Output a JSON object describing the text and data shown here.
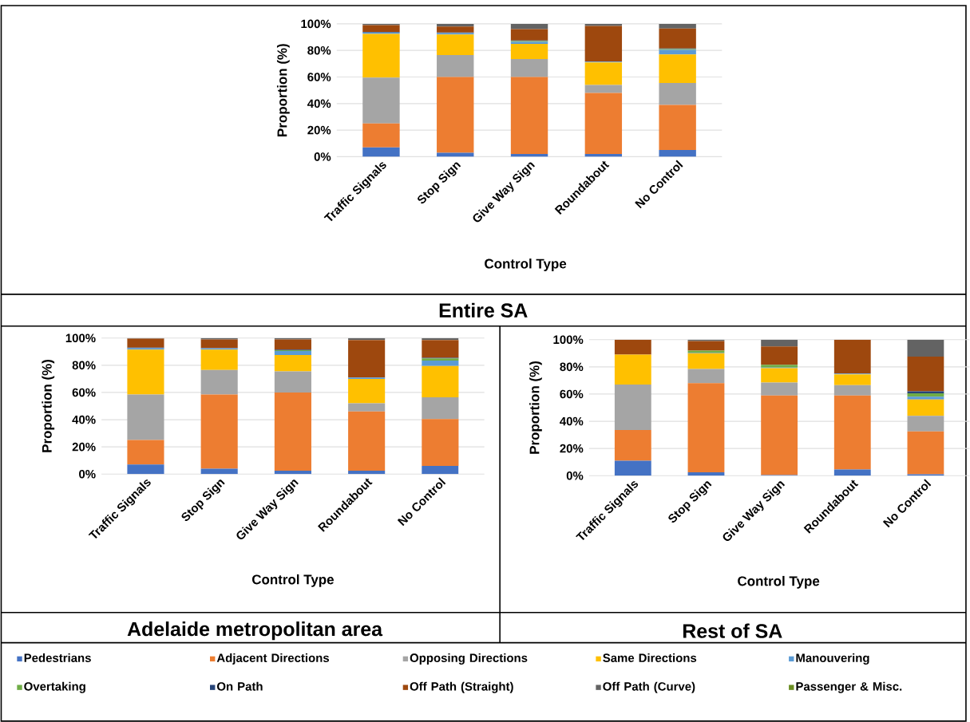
{
  "chart_data": [
    {
      "type": "bar",
      "stacked": true,
      "title": "Entire SA",
      "xlabel": "Control Type",
      "ylabel": "Proportion (%)",
      "grid": "y",
      "categories": [
        "Traffic Signals",
        "Stop Sign",
        "Give Way Sign",
        "Roundabout",
        "No Control"
      ],
      "ylim": [
        0,
        100
      ],
      "yticks": [
        {
          "value": 0,
          "label": "0%"
        },
        {
          "value": 20,
          "label": "20%"
        },
        {
          "value": 40,
          "label": "40%"
        },
        {
          "value": 60,
          "label": "60%"
        },
        {
          "value": 80,
          "label": "80%"
        },
        {
          "value": 100,
          "label": "100%"
        }
      ],
      "series": [
        {
          "color": "#4472c4",
          "values": [
            7,
            3,
            2,
            2,
            5
          ]
        },
        {
          "color": "#ed7d31",
          "values": [
            18,
            57,
            58,
            46,
            34
          ]
        },
        {
          "color": "#a5a5a5",
          "values": [
            34.5,
            16.5,
            13.5,
            6,
            16.5
          ]
        },
        {
          "color": "#ffc000",
          "values": [
            33,
            15.5,
            11.5,
            17,
            21.5
          ]
        },
        {
          "color": "#5b9bd5",
          "values": [
            1,
            1,
            1.5,
            0.5,
            3.5
          ]
        },
        {
          "color": "#70ad47",
          "values": [
            0,
            0,
            0.5,
            0,
            0.5
          ]
        },
        {
          "color": "#264478",
          "values": [
            0.5,
            0.5,
            0.5,
            0,
            0.5
          ]
        },
        {
          "color": "#9e480e",
          "values": [
            5,
            4.5,
            8.5,
            27,
            15
          ]
        },
        {
          "color": "#636363",
          "values": [
            1,
            2,
            4,
            1.5,
            3.5
          ]
        },
        {
          "color": "#6b8e23",
          "values": [
            0,
            0,
            0,
            0,
            0
          ]
        }
      ]
    },
    {
      "type": "bar",
      "stacked": true,
      "title": "Adelaide metropolitan area",
      "xlabel": "Control Type",
      "ylabel": "Proportion (%)",
      "grid": "y",
      "legend": "bottom",
      "categories": [
        "Traffic Signals",
        "Stop Sign",
        "Give Way Sign",
        "Roundabout",
        "No Control"
      ],
      "ylim": [
        0,
        100
      ],
      "yticks": [
        {
          "value": 0,
          "label": "0%"
        },
        {
          "value": 20,
          "label": "20%"
        },
        {
          "value": 40,
          "label": "40%"
        },
        {
          "value": 60,
          "label": "60%"
        },
        {
          "value": 80,
          "label": "80%"
        },
        {
          "value": 100,
          "label": "100%"
        }
      ],
      "series": [
        {
          "name": "Pedestrians",
          "color": "#4472c4",
          "values": [
            7,
            4,
            2.5,
            2.5,
            6
          ]
        },
        {
          "name": "Adjacent Directions",
          "color": "#ed7d31",
          "values": [
            18,
            54.5,
            57.5,
            43.5,
            34.5
          ]
        },
        {
          "name": "Opposing Directions",
          "color": "#a5a5a5",
          "values": [
            33.5,
            18,
            15.5,
            6,
            16
          ]
        },
        {
          "name": "Same Directions",
          "color": "#ffc000",
          "values": [
            33,
            15,
            12,
            18,
            23
          ]
        },
        {
          "name": "Manouvering",
          "color": "#5b9bd5",
          "values": [
            1,
            1,
            3,
            1,
            4
          ]
        },
        {
          "name": "Overtaking",
          "color": "#70ad47",
          "values": [
            0,
            0,
            0.5,
            0,
            1.5
          ]
        },
        {
          "name": "On Path",
          "color": "#264478",
          "values": [
            0.5,
            0,
            0.5,
            0,
            0.5
          ]
        },
        {
          "name": "Off Path (Straight)",
          "color": "#9e480e",
          "values": [
            6.5,
            6.5,
            7.5,
            27.5,
            13
          ]
        },
        {
          "name": "Off Path (Curve)",
          "color": "#636363",
          "values": [
            0.5,
            1,
            1,
            1.5,
            1.5
          ]
        },
        {
          "name": "Passenger & Misc.",
          "color": "#6b8e23",
          "values": [
            0,
            0,
            0,
            0,
            0
          ]
        }
      ]
    },
    {
      "type": "bar",
      "stacked": true,
      "title": "Rest of SA",
      "xlabel": "Control Type",
      "ylabel": "Proportion (%)",
      "grid": "y",
      "categories": [
        "Traffic Signals",
        "Stop Sign",
        "Give Way Sign",
        "Roundabout",
        "No Control"
      ],
      "ylim": [
        0,
        100
      ],
      "yticks": [
        {
          "value": 0,
          "label": "0%"
        },
        {
          "value": 20,
          "label": "20%"
        },
        {
          "value": 40,
          "label": "40%"
        },
        {
          "value": 60,
          "label": "60%"
        },
        {
          "value": 80,
          "label": "80%"
        },
        {
          "value": 100,
          "label": "100%"
        }
      ],
      "series": [
        {
          "color": "#4472c4",
          "values": [
            11,
            2.5,
            0.5,
            4.5,
            1
          ]
        },
        {
          "color": "#ed7d31",
          "values": [
            22.5,
            65.5,
            58.5,
            54.5,
            31.5
          ]
        },
        {
          "color": "#a5a5a5",
          "values": [
            33.5,
            10.5,
            9.5,
            7.5,
            11.5
          ]
        },
        {
          "color": "#ffc000",
          "values": [
            22,
            11.5,
            10.5,
            8,
            12
          ]
        },
        {
          "color": "#5b9bd5",
          "values": [
            0,
            0.5,
            0.5,
            0.5,
            2
          ]
        },
        {
          "color": "#70ad47",
          "values": [
            0,
            1.5,
            2,
            0,
            2.5
          ]
        },
        {
          "color": "#264478",
          "values": [
            0,
            0,
            0,
            0,
            1.5
          ]
        },
        {
          "color": "#9e480e",
          "values": [
            11,
            7,
            13.5,
            25,
            25.5
          ]
        },
        {
          "color": "#636363",
          "values": [
            0,
            1,
            5,
            0,
            12.5
          ]
        },
        {
          "color": "#6b8e23",
          "values": [
            0,
            0,
            0,
            0,
            0
          ]
        }
      ]
    }
  ]
}
